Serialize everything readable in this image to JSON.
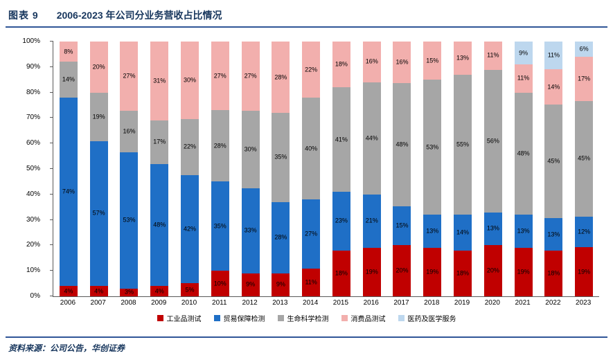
{
  "header": {
    "fig_label": "图表 9",
    "title": "2006-2023 年公司分业务营收占比情况"
  },
  "footer": {
    "source": "资料来源：公司公告，华创证券"
  },
  "colors": {
    "accent_rule": "#2F5597",
    "title_text": "#17365D",
    "axis_line": "#595959"
  },
  "chart_data": {
    "type": "bar",
    "stacked": true,
    "percent_stacked": true,
    "title": "2006-2023 年公司分业务营收占比情况",
    "xlabel": "",
    "ylabel": "",
    "ylim": [
      0,
      100
    ],
    "unit": "%",
    "grid": false,
    "legend_position": "bottom",
    "yticks": [
      "0%",
      "10%",
      "20%",
      "30%",
      "40%",
      "50%",
      "60%",
      "70%",
      "80%",
      "90%",
      "100%"
    ],
    "categories": [
      "2006",
      "2007",
      "2008",
      "2009",
      "2010",
      "2011",
      "2012",
      "2013",
      "2014",
      "2015",
      "2016",
      "2017",
      "2018",
      "2019",
      "2020",
      "2021",
      "2022",
      "2023"
    ],
    "series": [
      {
        "name": "工业品测试",
        "color": "#C00000",
        "values": [
          4,
          4,
          3,
          4,
          5,
          10,
          9,
          9,
          11,
          18,
          19,
          20,
          19,
          18,
          20,
          19,
          18,
          19
        ]
      },
      {
        "name": "贸易保障检测",
        "color": "#1F6FC6",
        "values": [
          74,
          57,
          53,
          48,
          42,
          35,
          33,
          28,
          27,
          23,
          21,
          15,
          13,
          14,
          13,
          13,
          13,
          12
        ]
      },
      {
        "name": "生命科学检测",
        "color": "#A6A6A6",
        "values": [
          14,
          19,
          16,
          17,
          22,
          28,
          30,
          35,
          40,
          41,
          44,
          48,
          53,
          55,
          56,
          48,
          45,
          45
        ]
      },
      {
        "name": "消费品测试",
        "color": "#F2AFAD",
        "values": [
          8,
          20,
          27,
          31,
          30,
          27,
          27,
          28,
          22,
          18,
          16,
          16,
          15,
          13,
          11,
          11,
          14,
          17
        ]
      },
      {
        "name": "医药及医学服务",
        "color": "#BDD7EE",
        "values": [
          null,
          null,
          null,
          null,
          null,
          null,
          null,
          null,
          null,
          null,
          null,
          null,
          null,
          null,
          null,
          9,
          11,
          6
        ]
      }
    ]
  }
}
